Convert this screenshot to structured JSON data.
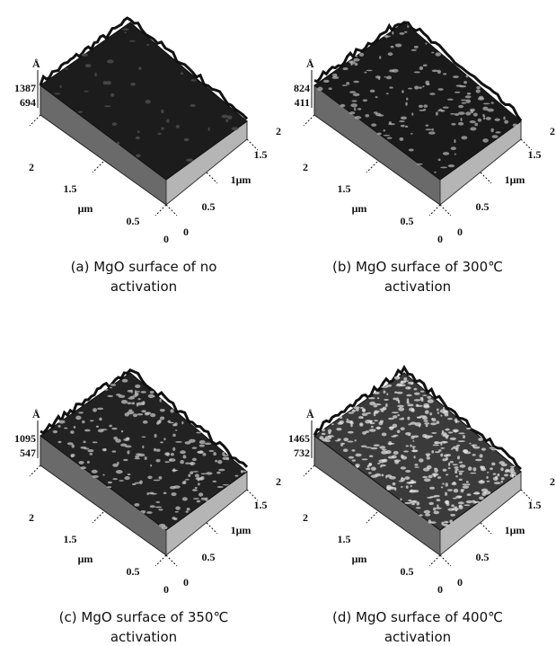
{
  "panels": [
    {
      "z_unit": "Å",
      "z_ticks": [
        "1387",
        "694"
      ],
      "left_ticks": [
        "2",
        "1.5",
        "μm",
        "0.5",
        "0"
      ],
      "right_ticks": [
        "0",
        "0.5",
        "1μm",
        "1.5",
        "2"
      ],
      "caption": [
        "(a) MgO surface of no",
        "activation"
      ]
    },
    {
      "z_unit": "Å",
      "z_ticks": [
        "824",
        "411"
      ],
      "left_ticks": [
        "2",
        "1.5",
        "μm",
        "0.5",
        "0"
      ],
      "right_ticks": [
        "0",
        "0.5",
        "1μm",
        "1.5",
        "2"
      ],
      "caption": [
        "(b) MgO surface of 300℃",
        "activation"
      ]
    },
    {
      "z_unit": "Å",
      "z_ticks": [
        "1095",
        "547"
      ],
      "left_ticks": [
        "2",
        "1.5",
        "μm",
        "0.5",
        "0"
      ],
      "right_ticks": [
        "0",
        "0.5",
        "1μm",
        "1.5",
        "2"
      ],
      "caption": [
        "(c) MgO surface of 350℃",
        "activation"
      ]
    },
    {
      "z_unit": "Å",
      "z_ticks": [
        "1465",
        "732"
      ],
      "left_ticks": [
        "2",
        "1.5",
        "μm",
        "0.5",
        "0"
      ],
      "right_ticks": [
        "0",
        "0.5",
        "1μm",
        "1.5",
        "2"
      ],
      "caption": [
        "(d) MgO surface of 400℃",
        "activation"
      ]
    }
  ]
}
